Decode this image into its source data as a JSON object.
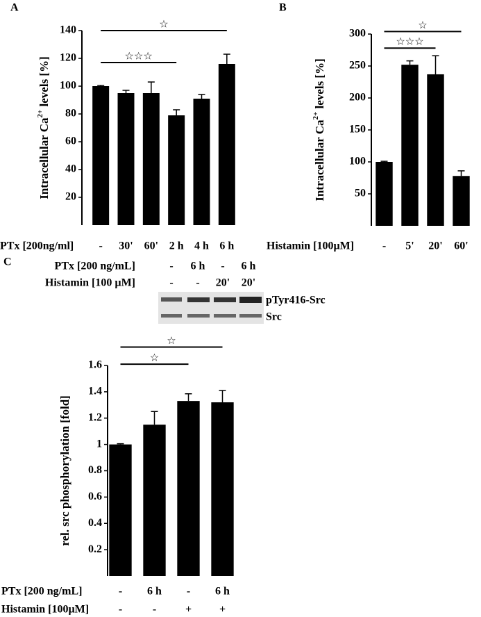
{
  "chart_data": [
    {
      "type": "bar",
      "panel": "A",
      "y_label": "Intracellular Ca",
      "y_label_sup": "2+",
      "y_label_end": " levels [%]",
      "x_label": "PTx [200ng/ml]",
      "categories": [
        "-",
        "30'",
        "60'",
        "2 h",
        "4 h",
        "6 h"
      ],
      "values": [
        100,
        95,
        95,
        79,
        91,
        116
      ],
      "errors": [
        0.5,
        2,
        8,
        4,
        3,
        7
      ],
      "color": "#000000",
      "ylim": [
        0,
        140
      ],
      "yticks": [
        20,
        40,
        60,
        80,
        100,
        120,
        140
      ],
      "annotations": [
        {
          "label": "☆☆☆",
          "start": 0,
          "end": 3,
          "y": 117
        },
        {
          "label": "☆",
          "start": 0,
          "end": 5,
          "y": 140
        }
      ]
    },
    {
      "type": "bar",
      "panel": "B",
      "y_label": "Intracellular Ca",
      "y_label_sup": "2+",
      "y_label_end": " levels [%]",
      "x_label": "Histamin [100µM]",
      "categories": [
        "-",
        "5'",
        "20'",
        "60'"
      ],
      "values": [
        100,
        252,
        237,
        78
      ],
      "errors": [
        1,
        6,
        29,
        8
      ],
      "color": "#000000",
      "ylim": [
        0,
        300
      ],
      "yticks": [
        50,
        100,
        150,
        200,
        250,
        300
      ],
      "annotations": [
        {
          "label": "☆☆☆",
          "start": 0,
          "end": 2,
          "y": 278
        },
        {
          "label": "☆",
          "start": 0,
          "end": 3,
          "y": 304
        }
      ]
    },
    {
      "type": "bar",
      "panel": "C",
      "y_label": "rel. src phosphorylation [fold]",
      "x_label": "PTx [200 ng/mL]",
      "x_label_row2": "Histamin [100µM]",
      "categories": [
        "-",
        "6 h",
        "-",
        "6 h"
      ],
      "categories_row2": [
        "-",
        "-",
        "+",
        "+"
      ],
      "values": [
        1.0,
        1.15,
        1.33,
        1.32
      ],
      "errors": [
        0.005,
        0.1,
        0.055,
        0.09
      ],
      "color": "#000000",
      "ylim": [
        0,
        1.6
      ],
      "yticks": [
        0.2,
        0.4,
        0.6,
        0.8,
        1,
        1.2,
        1.4,
        1.6
      ],
      "annotations": [
        {
          "label": "☆",
          "start": 0,
          "end": 2,
          "y": 1.61
        },
        {
          "label": "☆",
          "start": 0,
          "end": 3,
          "y": 1.74
        }
      ]
    }
  ],
  "blot": {
    "rows": [
      {
        "label": "PTx [200 ng/mL]",
        "values": [
          "-",
          "6 h",
          "-",
          "6 h"
        ]
      },
      {
        "label": "Histamin [100 µM]",
        "values": [
          "-",
          "-",
          "20'",
          "20'"
        ]
      }
    ],
    "bands": [
      "pTyr416-Src",
      "Src"
    ]
  }
}
